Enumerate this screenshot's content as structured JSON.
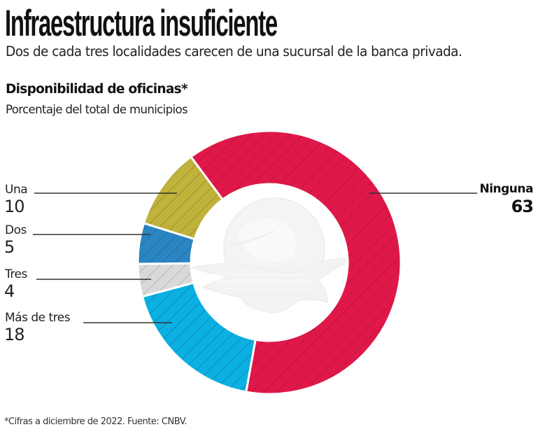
{
  "header": {
    "title": "Infraestructura insuficiente",
    "subtitle": "Dos de cada tres localidades carecen de una sucursal de la banca privada."
  },
  "chart": {
    "title": "Disponibilidad de oficinas*",
    "subtitle": "Porcentaje del total de municipios",
    "labels": [
      {
        "name": "Una",
        "value": "10"
      },
      {
        "name": "Dos",
        "value": "5"
      },
      {
        "name": "Tres",
        "value": "4"
      },
      {
        "name": "Más de tres",
        "value": "18"
      },
      {
        "name": "Ninguna",
        "value": "63"
      }
    ]
  },
  "footnote": "*Cifras a diciembre de 2022. Fuente: CNBV.",
  "watermark": "globe-eagle-logo",
  "chart_data": {
    "type": "pie",
    "subtype": "donut",
    "title": "Disponibilidad de oficinas*",
    "subtitle": "Porcentaje del total de municipios",
    "unit": "%",
    "categories": [
      "Ninguna",
      "Más de tres",
      "Tres",
      "Dos",
      "Una"
    ],
    "values": [
      63,
      18,
      4,
      5,
      10
    ],
    "colors": [
      "#E0184A",
      "#0BB0E3",
      "#D9D9D9",
      "#2A86C3",
      "#BFB33B"
    ],
    "stripe_colors": [
      "#9E1035",
      "#0A6E8F",
      "#9A9A9A",
      "#1B577F",
      "#7D7424"
    ],
    "start_angle_deg": 323.4,
    "direction": "clockwise",
    "legend_position": "callout labels (left and right)",
    "pattern": "diagonal hatching",
    "center": [
      385,
      375
    ],
    "outer_radius": 188,
    "inner_radius": 112
  }
}
